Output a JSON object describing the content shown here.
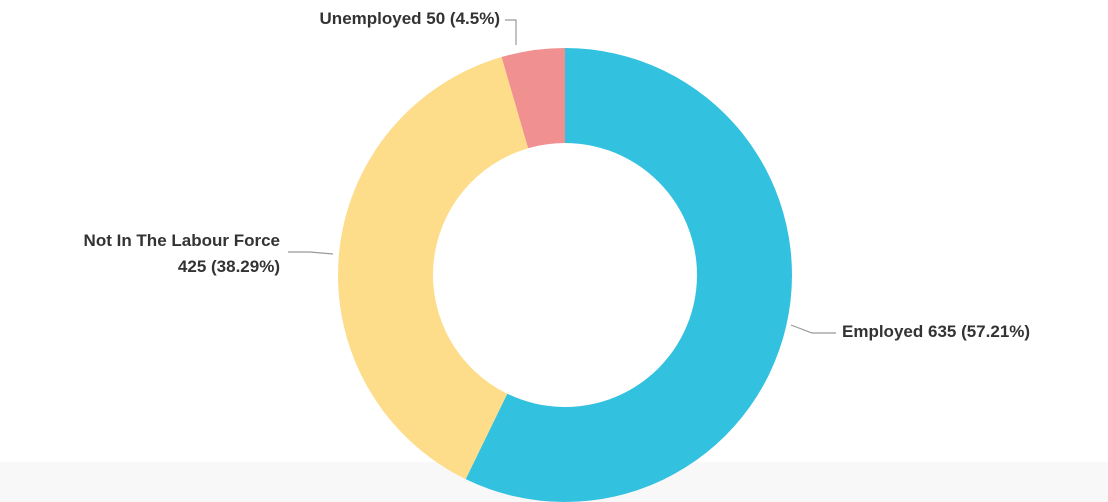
{
  "chart_data": {
    "type": "donut",
    "categories": [
      "Employed",
      "Not In The Labour Force",
      "Unemployed"
    ],
    "values": [
      635,
      425,
      50
    ],
    "value_labels": [
      "635 (57.21%)",
      "425 (38.29%)",
      "50 (4.5%)"
    ],
    "colors": [
      "#33c1e0",
      "#fddc8a",
      "#f09090"
    ]
  }
}
